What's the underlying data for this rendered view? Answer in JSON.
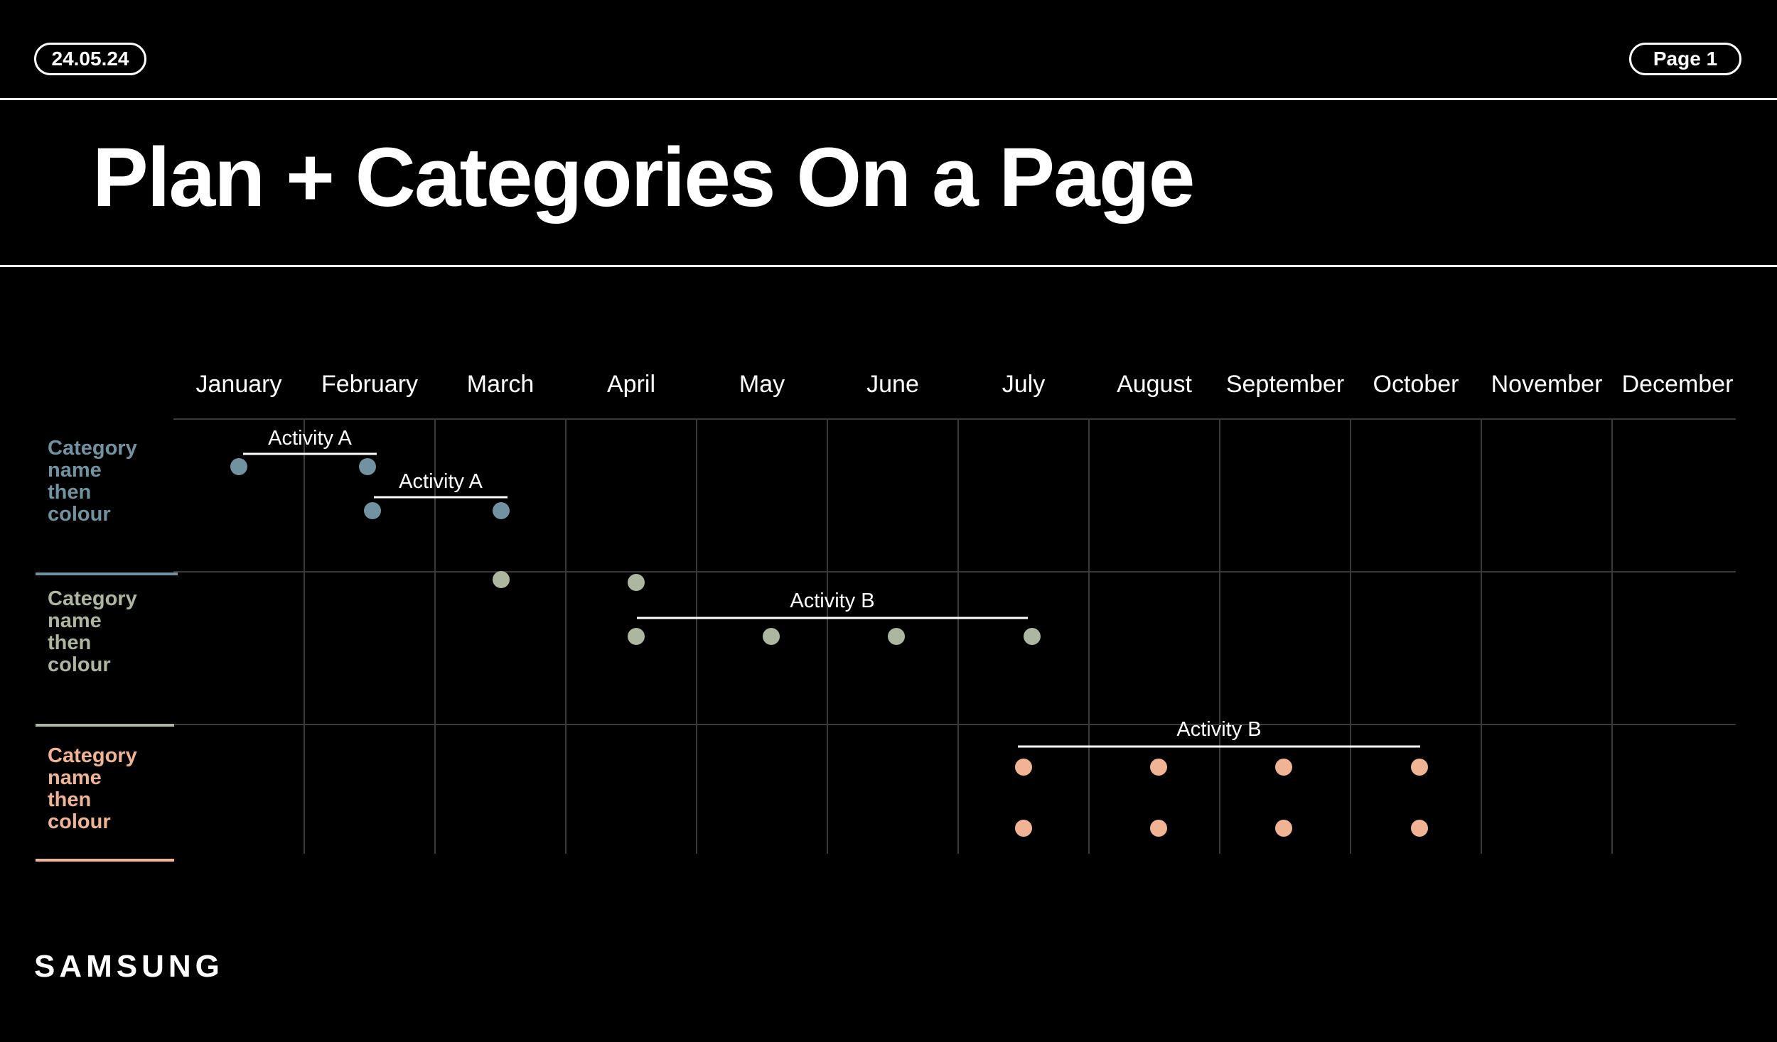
{
  "header": {
    "date": "24.05.24",
    "page": "Page 1",
    "title": "Plan + Categories On a Page"
  },
  "months": [
    "January",
    "February",
    "March",
    "April",
    "May",
    "June",
    "July",
    "August",
    "September",
    "October",
    "November",
    "December"
  ],
  "categories": [
    {
      "lines": [
        "Category",
        "name",
        "then",
        "colour"
      ],
      "color": "#7193a1"
    },
    {
      "lines": [
        "Category",
        "name",
        "then",
        "colour"
      ],
      "color": "#adb69f"
    },
    {
      "lines": [
        "Category",
        "name",
        "then",
        "colour"
      ],
      "color": "#f0b495"
    }
  ],
  "activities": [
    {
      "label": "Activity A",
      "category": 0,
      "start_month": 1.0,
      "end_month": 2.0,
      "dot_rows": [
        [
          1.0,
          2.0
        ]
      ]
    },
    {
      "label": "Activity A",
      "category": 0,
      "start_month": 2.0,
      "end_month": 3.0,
      "dot_rows": [
        [
          2.0,
          3.0
        ]
      ]
    },
    {
      "label": "Activity B",
      "category": 1,
      "start_month": 4.0,
      "end_month": 7.0,
      "dot_rows": [
        [
          4.0,
          5.0,
          6.0,
          7.0
        ]
      ]
    },
    {
      "label": "Activity B",
      "category": 2,
      "start_month": 7.0,
      "end_month": 10.0,
      "dot_rows": [
        [
          7.0,
          8.0,
          9.0,
          10.0
        ],
        [
          7.0,
          8.0,
          9.0,
          10.0
        ]
      ]
    }
  ],
  "extra_dots": [
    {
      "category": 1,
      "month": 3.0
    },
    {
      "category": 1,
      "month": 4.0
    }
  ],
  "logo": "SAMSUNG",
  "colors": {
    "background": "#000000",
    "foreground": "#ffffff",
    "grid": "#3a3a3a"
  }
}
